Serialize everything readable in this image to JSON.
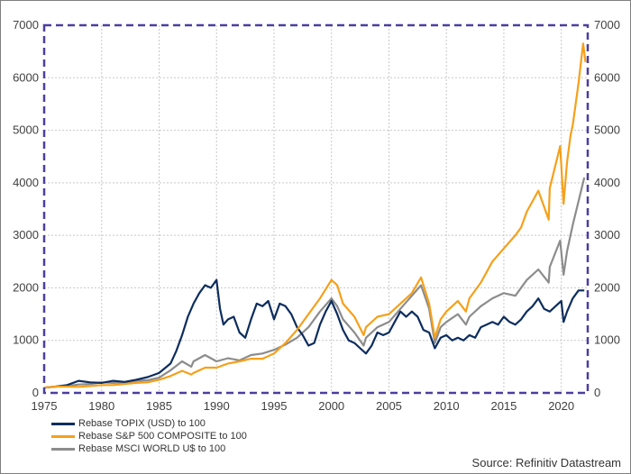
{
  "chart_data": {
    "type": "line",
    "title": "",
    "xlabel": "",
    "ylabel": "",
    "xlim": [
      1975,
      2022.3
    ],
    "ylim": [
      0,
      7000
    ],
    "x_ticks": [
      "1975",
      "1980",
      "1985",
      "1990",
      "1995",
      "2000",
      "2005",
      "2010",
      "2015",
      "2020"
    ],
    "y_ticks": [
      "0",
      "1000",
      "2000",
      "3000",
      "4000",
      "5000",
      "6000",
      "7000"
    ],
    "grid": true,
    "legend_position": "bottom-left",
    "series": [
      {
        "name": "Rebase TOPIX (USD) to 100",
        "color": "#0d2d5e",
        "points": [
          [
            1975,
            100
          ],
          [
            1976,
            120
          ],
          [
            1977,
            150
          ],
          [
            1978,
            230
          ],
          [
            1979,
            200
          ],
          [
            1980,
            190
          ],
          [
            1981,
            230
          ],
          [
            1982,
            210
          ],
          [
            1983,
            250
          ],
          [
            1984,
            300
          ],
          [
            1985,
            380
          ],
          [
            1986,
            560
          ],
          [
            1986.5,
            800
          ],
          [
            1987,
            1100
          ],
          [
            1987.5,
            1450
          ],
          [
            1988,
            1700
          ],
          [
            1988.5,
            1900
          ],
          [
            1989,
            2050
          ],
          [
            1989.5,
            2000
          ],
          [
            1990,
            2150
          ],
          [
            1990.3,
            1600
          ],
          [
            1990.6,
            1300
          ],
          [
            1991,
            1400
          ],
          [
            1991.5,
            1450
          ],
          [
            1992,
            1150
          ],
          [
            1992.5,
            1050
          ],
          [
            1993,
            1400
          ],
          [
            1993.5,
            1700
          ],
          [
            1994,
            1650
          ],
          [
            1994.5,
            1750
          ],
          [
            1995,
            1400
          ],
          [
            1995.5,
            1700
          ],
          [
            1996,
            1650
          ],
          [
            1996.5,
            1500
          ],
          [
            1997,
            1250
          ],
          [
            1997.5,
            1100
          ],
          [
            1998,
            900
          ],
          [
            1998.5,
            950
          ],
          [
            1999,
            1300
          ],
          [
            1999.5,
            1550
          ],
          [
            2000,
            1750
          ],
          [
            2000.5,
            1500
          ],
          [
            2001,
            1200
          ],
          [
            2001.5,
            1000
          ],
          [
            2002,
            950
          ],
          [
            2002.5,
            850
          ],
          [
            2003,
            750
          ],
          [
            2003.5,
            900
          ],
          [
            2004,
            1150
          ],
          [
            2004.5,
            1100
          ],
          [
            2005,
            1150
          ],
          [
            2005.5,
            1350
          ],
          [
            2006,
            1550
          ],
          [
            2006.5,
            1450
          ],
          [
            2007,
            1550
          ],
          [
            2007.5,
            1450
          ],
          [
            2008,
            1200
          ],
          [
            2008.5,
            1150
          ],
          [
            2009,
            850
          ],
          [
            2009.5,
            1050
          ],
          [
            2010,
            1100
          ],
          [
            2010.5,
            1000
          ],
          [
            2011,
            1050
          ],
          [
            2011.5,
            1000
          ],
          [
            2012,
            1100
          ],
          [
            2012.5,
            1050
          ],
          [
            2013,
            1250
          ],
          [
            2013.5,
            1300
          ],
          [
            2014,
            1350
          ],
          [
            2014.5,
            1300
          ],
          [
            2015,
            1450
          ],
          [
            2015.5,
            1350
          ],
          [
            2016,
            1300
          ],
          [
            2016.5,
            1400
          ],
          [
            2017,
            1550
          ],
          [
            2017.5,
            1650
          ],
          [
            2018,
            1800
          ],
          [
            2018.5,
            1600
          ],
          [
            2019,
            1550
          ],
          [
            2019.5,
            1650
          ],
          [
            2020,
            1750
          ],
          [
            2020.2,
            1350
          ],
          [
            2020.5,
            1550
          ],
          [
            2021,
            1800
          ],
          [
            2021.5,
            1950
          ],
          [
            2022,
            1950
          ]
        ]
      },
      {
        "name": "Rebase S&P 500 COMPOSITE to 100",
        "color": "#f5a01a",
        "points": [
          [
            1975,
            100
          ],
          [
            1976,
            120
          ],
          [
            1977,
            120
          ],
          [
            1978,
            115
          ],
          [
            1979,
            130
          ],
          [
            1980,
            150
          ],
          [
            1981,
            150
          ],
          [
            1982,
            170
          ],
          [
            1983,
            190
          ],
          [
            1984,
            200
          ],
          [
            1985,
            250
          ],
          [
            1986,
            320
          ],
          [
            1987,
            420
          ],
          [
            1987.8,
            350
          ],
          [
            1988,
            380
          ],
          [
            1989,
            480
          ],
          [
            1990,
            480
          ],
          [
            1991,
            560
          ],
          [
            1992,
            600
          ],
          [
            1993,
            650
          ],
          [
            1994,
            650
          ],
          [
            1995,
            750
          ],
          [
            1996,
            950
          ],
          [
            1997,
            1200
          ],
          [
            1998,
            1500
          ],
          [
            1999,
            1800
          ],
          [
            2000,
            2150
          ],
          [
            2000.5,
            2050
          ],
          [
            2001,
            1700
          ],
          [
            2002,
            1450
          ],
          [
            2002.8,
            1100
          ],
          [
            2003,
            1250
          ],
          [
            2004,
            1450
          ],
          [
            2005,
            1500
          ],
          [
            2006,
            1700
          ],
          [
            2007,
            1900
          ],
          [
            2007.8,
            2200
          ],
          [
            2008.5,
            1700
          ],
          [
            2009,
            1050
          ],
          [
            2009.5,
            1400
          ],
          [
            2010,
            1550
          ],
          [
            2011,
            1750
          ],
          [
            2011.7,
            1550
          ],
          [
            2012,
            1800
          ],
          [
            2013,
            2100
          ],
          [
            2014,
            2500
          ],
          [
            2015,
            2750
          ],
          [
            2016,
            3000
          ],
          [
            2016.5,
            3150
          ],
          [
            2017,
            3450
          ],
          [
            2018,
            3850
          ],
          [
            2018.9,
            3300
          ],
          [
            2019,
            3900
          ],
          [
            2019.9,
            4700
          ],
          [
            2020.2,
            3600
          ],
          [
            2020.5,
            4400
          ],
          [
            2020.8,
            4900
          ],
          [
            2021,
            5100
          ],
          [
            2021.5,
            5900
          ],
          [
            2021.9,
            6650
          ],
          [
            2022.1,
            6300
          ]
        ]
      },
      {
        "name": "Rebase MSCI WORLD U$ to 100",
        "color": "#8c8c8c",
        "points": [
          [
            1975,
            100
          ],
          [
            1976,
            120
          ],
          [
            1977,
            130
          ],
          [
            1978,
            160
          ],
          [
            1979,
            170
          ],
          [
            1980,
            200
          ],
          [
            1981,
            190
          ],
          [
            1982,
            200
          ],
          [
            1983,
            230
          ],
          [
            1984,
            240
          ],
          [
            1985,
            290
          ],
          [
            1986,
            430
          ],
          [
            1987,
            600
          ],
          [
            1987.8,
            500
          ],
          [
            1988,
            600
          ],
          [
            1989,
            720
          ],
          [
            1990,
            600
          ],
          [
            1991,
            660
          ],
          [
            1992,
            620
          ],
          [
            1993,
            720
          ],
          [
            1994,
            750
          ],
          [
            1995,
            820
          ],
          [
            1996,
            920
          ],
          [
            1997,
            1050
          ],
          [
            1998,
            1250
          ],
          [
            1999,
            1550
          ],
          [
            2000,
            1800
          ],
          [
            2000.5,
            1650
          ],
          [
            2001,
            1400
          ],
          [
            2002,
            1150
          ],
          [
            2002.8,
            900
          ],
          [
            2003,
            1050
          ],
          [
            2004,
            1250
          ],
          [
            2005,
            1350
          ],
          [
            2006,
            1600
          ],
          [
            2007,
            1850
          ],
          [
            2007.8,
            2050
          ],
          [
            2008.5,
            1600
          ],
          [
            2009,
            950
          ],
          [
            2009.5,
            1250
          ],
          [
            2010,
            1350
          ],
          [
            2011,
            1500
          ],
          [
            2011.7,
            1300
          ],
          [
            2012,
            1450
          ],
          [
            2013,
            1650
          ],
          [
            2014,
            1800
          ],
          [
            2015,
            1900
          ],
          [
            2016,
            1850
          ],
          [
            2017,
            2150
          ],
          [
            2018,
            2350
          ],
          [
            2018.9,
            2100
          ],
          [
            2019,
            2400
          ],
          [
            2019.9,
            2900
          ],
          [
            2020.2,
            2250
          ],
          [
            2020.5,
            2700
          ],
          [
            2021,
            3200
          ],
          [
            2021.5,
            3650
          ],
          [
            2022,
            4100
          ]
        ]
      }
    ],
    "source": "Source: Refinitiv Datastream"
  }
}
